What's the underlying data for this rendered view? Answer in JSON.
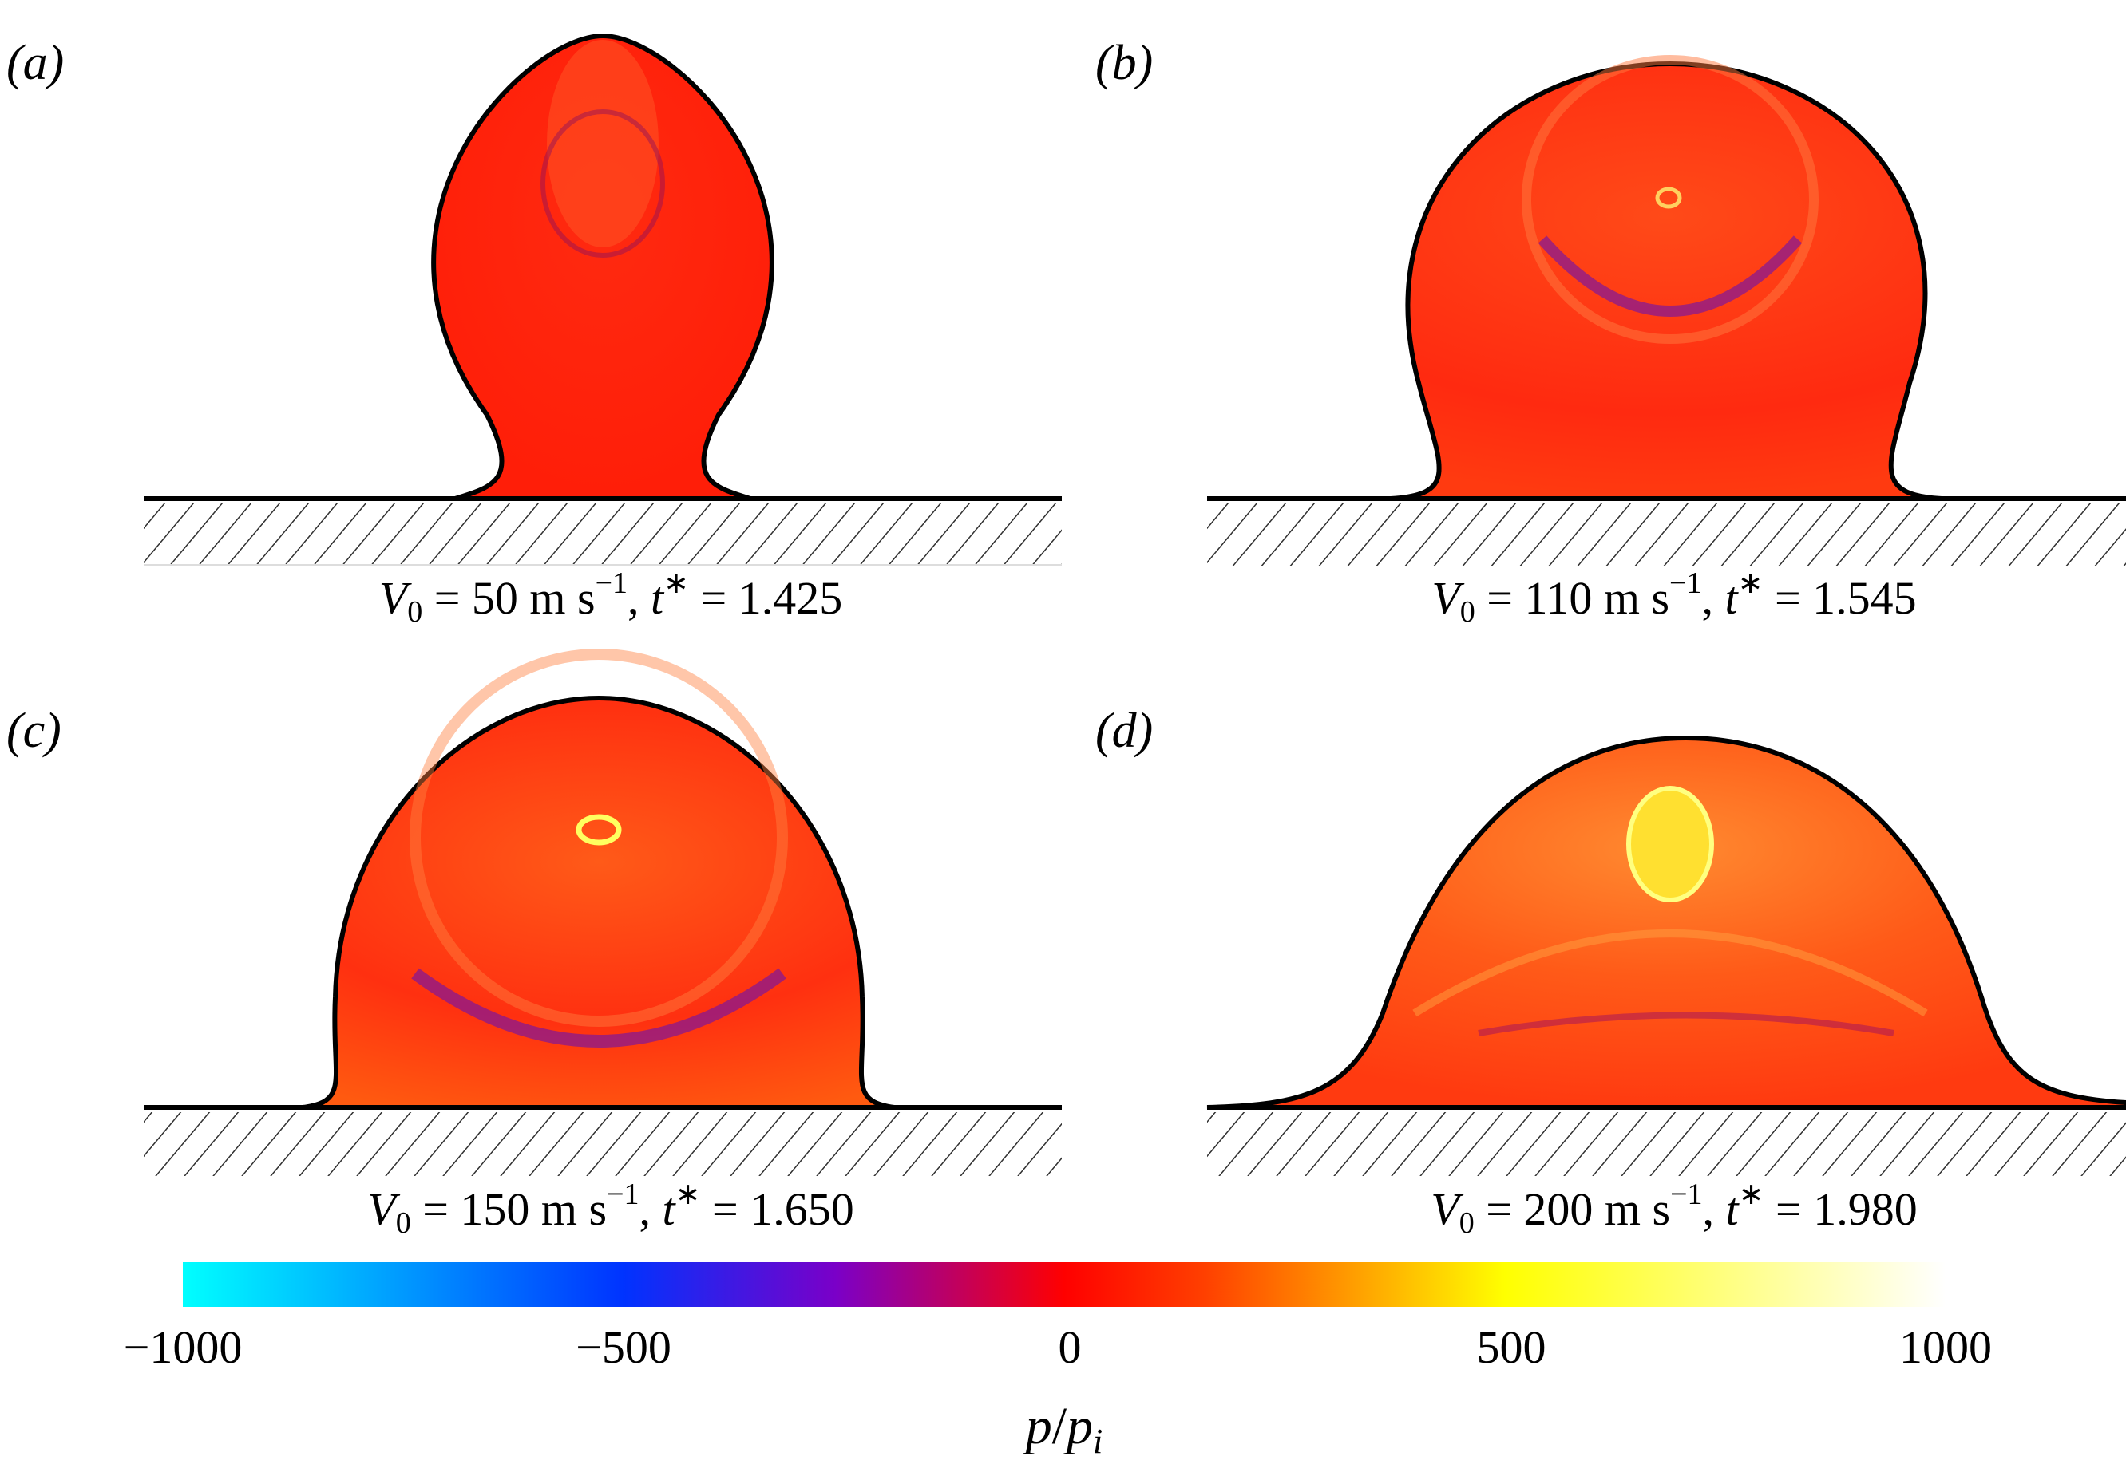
{
  "panels": [
    {
      "label": "(a)",
      "caption": {
        "v0": "50",
        "unit": "m s",
        "exp": "−1",
        "t": "1.425"
      }
    },
    {
      "label": "(b)",
      "caption": {
        "v0": "110",
        "unit": "m s",
        "exp": "−1",
        "t": "1.545"
      }
    },
    {
      "label": "(c)",
      "caption": {
        "v0": "150",
        "unit": "m s",
        "exp": "−1",
        "t": "1.650"
      }
    },
    {
      "label": "(d)",
      "caption": {
        "v0": "200",
        "unit": "m s",
        "exp": "−1",
        "t": "1.980"
      }
    }
  ],
  "caption_symbols": {
    "v": "V",
    "v_sub": "0",
    "eq": " = ",
    "sep": ", ",
    "t": "t",
    "star": "∗"
  },
  "colorbar": {
    "ticks": [
      "−1000",
      "−500",
      "0",
      "500",
      "1000"
    ],
    "label_p": "p",
    "label_slash": "/",
    "label_pi": "p",
    "label_sub": "i",
    "colors": [
      "#00ffff",
      "#0033ff",
      "#7a00c8",
      "#ff0000",
      "#ff9900",
      "#ffff00",
      "#ffffff"
    ]
  }
}
